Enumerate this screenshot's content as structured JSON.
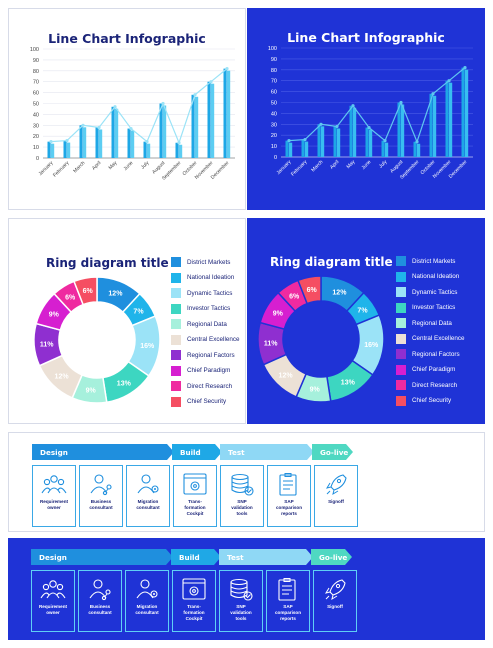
{
  "line_chart": {
    "title": "Line Chart Infographic",
    "y_ticks": [
      "0",
      "10",
      "20",
      "30",
      "40",
      "50",
      "60",
      "70",
      "80",
      "90",
      "100"
    ]
  },
  "ring": {
    "title": "Ring diagram title"
  },
  "process": {
    "phases": [
      {
        "label": "Design",
        "color": "#1f8fde"
      },
      {
        "label": "Build",
        "color": "#1fa8e6"
      },
      {
        "label": "Test",
        "color": "#8fd8f5"
      },
      {
        "label": "Go-live",
        "color": "#4fd8c2"
      }
    ],
    "steps": [
      {
        "label": "Requirement\nowner",
        "icon": "people-group-icon"
      },
      {
        "label": "Business\nconsultant",
        "icon": "person-network-icon"
      },
      {
        "label": "Migration\nconsultant",
        "icon": "person-gear-icon"
      },
      {
        "label": "Trans-\nformation\nCockpit",
        "icon": "browser-gear-icon"
      },
      {
        "label": "SNP\nvalidation\ntools",
        "icon": "database-check-icon"
      },
      {
        "label": "SAP\ncomparison\nreports",
        "icon": "clipboard-report-icon"
      },
      {
        "label": "Signoff",
        "icon": "rocket-icon"
      }
    ]
  },
  "chart_data": [
    {
      "type": "line",
      "title": "Line Chart Infographic",
      "categories": [
        "January",
        "February",
        "March",
        "April",
        "May",
        "June",
        "July",
        "August",
        "September",
        "October",
        "November",
        "December"
      ],
      "series": [
        {
          "values": [
            15,
            16,
            30,
            28,
            47,
            27,
            15,
            50,
            14,
            58,
            70,
            82
          ],
          "render": "line+bars"
        }
      ],
      "ylim": [
        0,
        100
      ],
      "grid": true
    },
    {
      "type": "pie",
      "style": "ring",
      "title": "Ring diagram title",
      "slices": [
        {
          "label": "District Markets",
          "value": 12,
          "display": "12%",
          "color": "#1f8fde"
        },
        {
          "label": "National Ideation",
          "value": 7,
          "display": "7%",
          "color": "#1fb4ea"
        },
        {
          "label": "Dynamic Tactics",
          "value": 16,
          "display": "16%",
          "color": "#9be3f7"
        },
        {
          "label": "Investor Tactics",
          "value": 13,
          "display": "13%",
          "color": "#3dd6c1"
        },
        {
          "label": "Regional Data",
          "value": 9,
          "display": "9%",
          "color": "#a6f0dc"
        },
        {
          "label": "Central Excellence",
          "value": 12,
          "display": "12%",
          "color": "#ece1d6"
        },
        {
          "label": "Regional Factors",
          "value": 11,
          "display": "11%",
          "color": "#8f2fd0"
        },
        {
          "label": "Chief Paradigm",
          "value": 9,
          "display": "9%",
          "color": "#d61fd0"
        },
        {
          "label": "Direct Research",
          "value": 6,
          "display": "6%",
          "color": "#ef2aa0"
        },
        {
          "label": "Chief Security",
          "value": 6,
          "display": "6%",
          "color": "#f54e62"
        }
      ]
    }
  ]
}
